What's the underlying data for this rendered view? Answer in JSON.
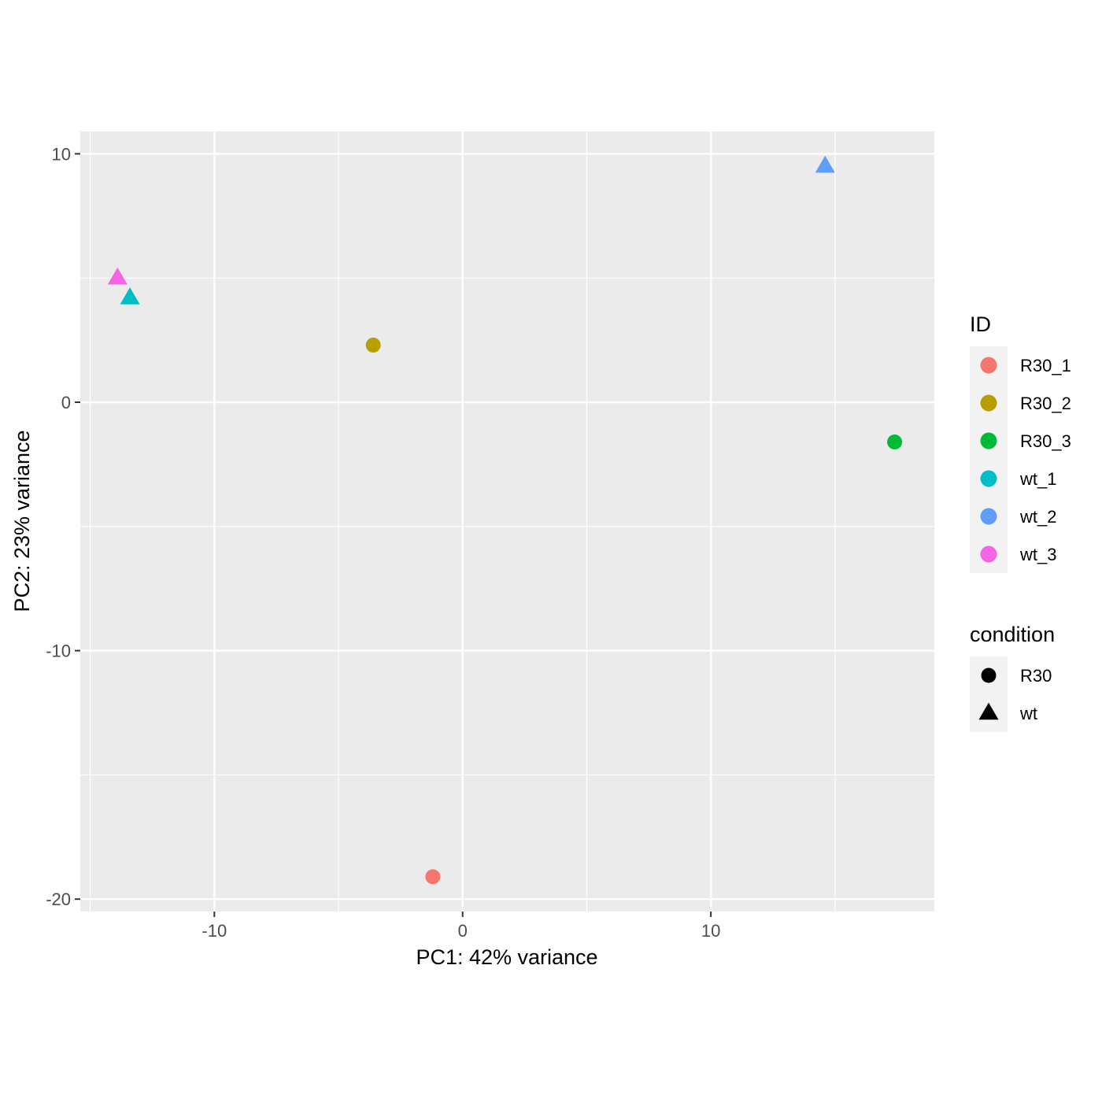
{
  "chart_data": {
    "type": "scatter",
    "title": "",
    "xlabel": "PC1: 42% variance",
    "ylabel": "PC2: 23% variance",
    "xlim": [
      -15.4,
      19.0
    ],
    "ylim": [
      -20.5,
      10.9
    ],
    "x_ticks": [
      -10,
      0,
      10
    ],
    "x_tick_labels": [
      "-10",
      "0",
      "10"
    ],
    "y_ticks": [
      10,
      0,
      -10,
      -20
    ],
    "y_tick_labels": [
      "10",
      "0",
      "-10",
      "-20"
    ],
    "grid": true,
    "legend_position": "right",
    "points": [
      {
        "id": "R30_1",
        "condition": "R30",
        "x": -1.2,
        "y": -19.1,
        "color": "#F8766D"
      },
      {
        "id": "R30_2",
        "condition": "R30",
        "x": -3.6,
        "y": 2.3,
        "color": "#B79F00"
      },
      {
        "id": "R30_3",
        "condition": "R30",
        "x": 17.4,
        "y": -1.6,
        "color": "#00BA38"
      },
      {
        "id": "wt_1",
        "condition": "wt",
        "x": -13.4,
        "y": 4.2,
        "color": "#00BFC4"
      },
      {
        "id": "wt_2",
        "condition": "wt",
        "x": 14.6,
        "y": 9.5,
        "color": "#619CFF"
      },
      {
        "id": "wt_3",
        "condition": "wt",
        "x": -13.9,
        "y": 5.0,
        "color": "#F564E3"
      }
    ],
    "legend_id": {
      "title": "ID",
      "entries": [
        {
          "label": "R30_1",
          "color": "#F8766D"
        },
        {
          "label": "R30_2",
          "color": "#B79F00"
        },
        {
          "label": "R30_3",
          "color": "#00BA38"
        },
        {
          "label": "wt_1",
          "color": "#00BFC4"
        },
        {
          "label": "wt_2",
          "color": "#619CFF"
        },
        {
          "label": "wt_3",
          "color": "#F564E3"
        }
      ]
    },
    "legend_condition": {
      "title": "condition",
      "entries": [
        {
          "label": "R30",
          "shape": "circle"
        },
        {
          "label": "wt",
          "shape": "triangle"
        }
      ]
    },
    "colors": {
      "panel_background": "#EBEBEB",
      "grid_line": "#FFFFFF",
      "tick_color": "#333333",
      "legend_key_background": "#F2F2F2"
    }
  }
}
